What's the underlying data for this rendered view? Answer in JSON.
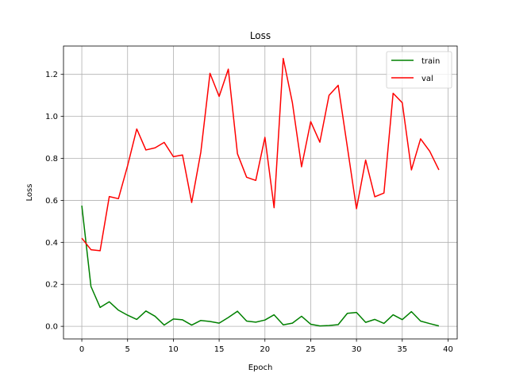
{
  "chart_data": {
    "type": "line",
    "title": "Loss",
    "xlabel": "Epoch",
    "ylabel": "Loss",
    "xlim": [
      -2,
      41
    ],
    "ylim": [
      -0.06,
      1.335
    ],
    "xticks": [
      0,
      5,
      10,
      15,
      20,
      25,
      30,
      35,
      40
    ],
    "yticks": [
      0.0,
      0.2,
      0.4,
      0.6,
      0.8,
      1.0,
      1.2
    ],
    "ytick_labels": [
      "0.0",
      "0.2",
      "0.4",
      "0.6",
      "0.8",
      "1.0",
      "1.2"
    ],
    "grid": true,
    "legend_position": "top-right",
    "x": [
      0,
      1,
      2,
      3,
      4,
      5,
      6,
      7,
      8,
      9,
      10,
      11,
      12,
      13,
      14,
      15,
      16,
      17,
      18,
      19,
      20,
      21,
      22,
      23,
      24,
      25,
      26,
      27,
      28,
      29,
      30,
      31,
      32,
      33,
      34,
      35,
      36,
      37,
      38,
      39
    ],
    "series": [
      {
        "name": "train",
        "color": "#008000",
        "values": [
          0.575,
          0.19,
          0.09,
          0.117,
          0.077,
          0.053,
          0.033,
          0.073,
          0.048,
          0.006,
          0.035,
          0.031,
          0.006,
          0.028,
          0.023,
          0.015,
          0.042,
          0.072,
          0.025,
          0.02,
          0.03,
          0.055,
          0.007,
          0.015,
          0.048,
          0.01,
          0.002,
          0.004,
          0.008,
          0.062,
          0.066,
          0.019,
          0.033,
          0.014,
          0.055,
          0.032,
          0.07,
          0.025,
          0.013,
          0.002
        ]
      },
      {
        "name": "val",
        "color": "#ff0000",
        "values": [
          0.42,
          0.365,
          0.36,
          0.618,
          0.608,
          0.765,
          0.94,
          0.84,
          0.85,
          0.876,
          0.808,
          0.816,
          0.59,
          0.83,
          1.205,
          1.095,
          1.225,
          0.822,
          0.71,
          0.695,
          0.9,
          0.565,
          1.276,
          1.065,
          0.76,
          0.975,
          0.877,
          1.1,
          1.148,
          0.855,
          0.56,
          0.792,
          0.617,
          0.635,
          1.11,
          1.065,
          0.745,
          0.893,
          0.834,
          0.745
        ]
      }
    ]
  }
}
